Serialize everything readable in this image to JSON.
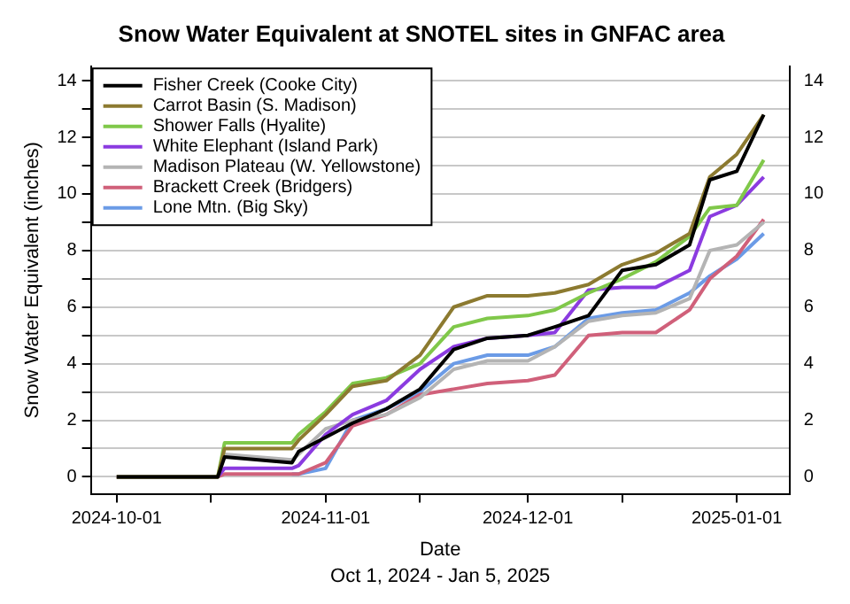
{
  "chart_data": {
    "type": "line",
    "title": "Snow Water Equivalent at SNOTEL sites in GNFAC area",
    "xlabel": "Date",
    "ylabel": "Snow Water Equivalent (inches)",
    "annotations": [
      "Oct 1, 2024 - Jan 5, 2025"
    ],
    "x": [
      "2024-10-01",
      "2024-10-16",
      "2024-10-17",
      "2024-10-27",
      "2024-10-28",
      "2024-11-01",
      "2024-11-05",
      "2024-11-10",
      "2024-11-15",
      "2024-11-20",
      "2024-11-25",
      "2024-12-01",
      "2024-12-05",
      "2024-12-10",
      "2024-12-15",
      "2024-12-20",
      "2024-12-25",
      "2024-12-28",
      "2025-01-01",
      "2025-01-05"
    ],
    "series": [
      {
        "name": "Fisher Creek (Cooke City)",
        "color": "#000000",
        "values": [
          0,
          0,
          0.7,
          0.5,
          0.9,
          1.4,
          1.9,
          2.4,
          3.1,
          4.5,
          4.9,
          5.0,
          5.3,
          5.7,
          7.3,
          7.5,
          8.2,
          10.5,
          10.8,
          12.8
        ]
      },
      {
        "name": "Carrot Basin (S. Madison)",
        "color": "#8c7a30",
        "values": [
          0,
          0,
          1.0,
          1.0,
          1.3,
          2.2,
          3.2,
          3.4,
          4.3,
          6.0,
          6.4,
          6.4,
          6.5,
          6.8,
          7.5,
          7.9,
          8.6,
          10.6,
          11.4,
          12.8
        ]
      },
      {
        "name": "Shower Falls (Hyalite)",
        "color": "#80c84a",
        "values": [
          0,
          0,
          1.2,
          1.2,
          1.5,
          2.3,
          3.3,
          3.5,
          4.0,
          5.3,
          5.6,
          5.7,
          5.9,
          6.5,
          7.0,
          7.6,
          8.5,
          9.5,
          9.6,
          11.2
        ]
      },
      {
        "name": "White Elephant (Island Park)",
        "color": "#8b3be0",
        "values": [
          0,
          0,
          0.3,
          0.3,
          0.4,
          1.5,
          2.2,
          2.7,
          3.8,
          4.6,
          4.9,
          5.0,
          5.1,
          6.6,
          6.7,
          6.7,
          7.3,
          9.2,
          9.6,
          10.6
        ]
      },
      {
        "name": "Madison Plateau (W. Yellowstone)",
        "color": "#b4b4b4",
        "values": [
          0,
          0,
          0.8,
          0.6,
          0.8,
          1.7,
          2.0,
          2.2,
          2.8,
          3.8,
          4.1,
          4.1,
          4.6,
          5.5,
          5.7,
          5.8,
          6.3,
          8.0,
          8.2,
          9.0
        ]
      },
      {
        "name": "Brackett Creek (Bridgers)",
        "color": "#d0607a",
        "values": [
          0,
          0,
          0.1,
          0.1,
          0.1,
          0.5,
          1.8,
          2.2,
          2.9,
          3.1,
          3.3,
          3.4,
          3.6,
          5.0,
          5.1,
          5.1,
          5.9,
          7.0,
          7.8,
          9.1
        ]
      },
      {
        "name": "Lone Mtn. (Big Sky)",
        "color": "#6b9be6",
        "values": [
          null,
          null,
          null,
          0.1,
          0.1,
          0.3,
          2.0,
          2.4,
          3.0,
          4.0,
          4.3,
          4.3,
          4.6,
          5.6,
          5.8,
          5.9,
          6.5,
          7.1,
          7.7,
          8.6
        ]
      }
    ],
    "xlim": [
      "2024-09-27T04:00",
      "2025-01-08T20:00"
    ],
    "xticks": [
      {
        "value": "2024-10-01",
        "label": "2024-10-01"
      },
      {
        "value": "2024-10-15",
        "label": null
      },
      {
        "value": "2024-11-01",
        "label": "2024-11-01"
      },
      {
        "value": "2024-11-15",
        "label": null
      },
      {
        "value": "2024-12-01",
        "label": "2024-12-01"
      },
      {
        "value": "2024-12-15",
        "label": null
      },
      {
        "value": "2025-01-01",
        "label": "2025-01-01"
      }
    ],
    "ylim": [
      -0.6,
      14.5
    ],
    "yticks": [
      0,
      {
        "value": 1,
        "label": null
      },
      2,
      {
        "value": 3,
        "label": null
      },
      4,
      {
        "value": 5,
        "label": null
      },
      6,
      {
        "value": 7,
        "label": null
      },
      8,
      {
        "value": 9,
        "label": null
      },
      10,
      {
        "value": 11,
        "label": null
      },
      12,
      {
        "value": 13,
        "label": null
      },
      14
    ],
    "y2lim": [
      -0.6,
      14.5
    ],
    "y2ticks": [
      0,
      2,
      4,
      6,
      8,
      10,
      12,
      14
    ],
    "grid": "y",
    "legend": "top left",
    "marker": "none",
    "line_style": "solid"
  }
}
